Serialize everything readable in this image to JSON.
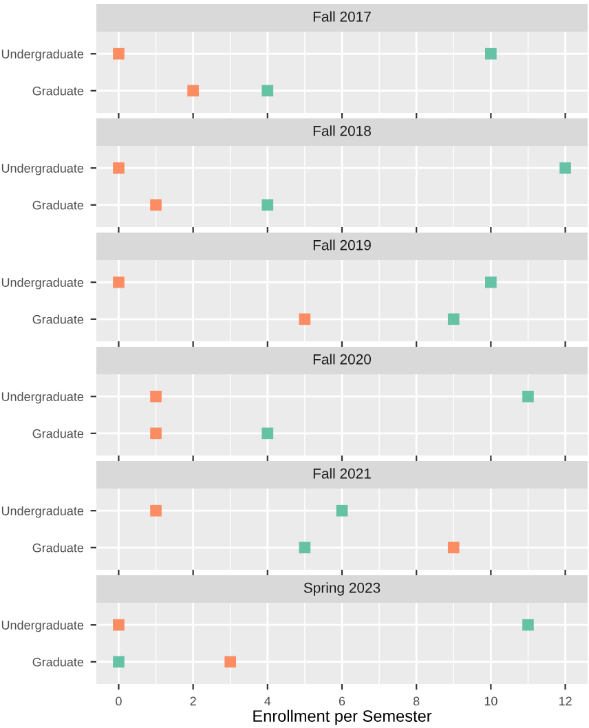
{
  "chart_data": [
    {
      "type": "scatter",
      "title": "Fall 2017",
      "orientation": "horizontal",
      "categories": [
        "Undergraduate",
        "Graduate"
      ],
      "series": [
        {
          "color": "#66c2a5",
          "values": [
            10,
            4
          ]
        },
        {
          "color": "#fc8d62",
          "values": [
            0,
            2
          ]
        }
      ],
      "xlim": [
        -0.6,
        12.6
      ],
      "xticks": [
        0,
        2,
        4,
        6,
        8,
        10,
        12
      ],
      "grid": true,
      "marker": "square",
      "tick_labels": "y"
    },
    {
      "type": "scatter",
      "title": "Fall 2018",
      "orientation": "horizontal",
      "categories": [
        "Undergraduate",
        "Graduate"
      ],
      "series": [
        {
          "color": "#66c2a5",
          "values": [
            12,
            4
          ]
        },
        {
          "color": "#fc8d62",
          "values": [
            0,
            1
          ]
        }
      ],
      "xlim": [
        -0.6,
        12.6
      ],
      "xticks": [
        0,
        2,
        4,
        6,
        8,
        10,
        12
      ],
      "grid": true,
      "marker": "square",
      "tick_labels": "y"
    },
    {
      "type": "scatter",
      "title": "Fall 2019",
      "orientation": "horizontal",
      "categories": [
        "Undergraduate",
        "Graduate"
      ],
      "series": [
        {
          "color": "#66c2a5",
          "values": [
            10,
            9
          ]
        },
        {
          "color": "#fc8d62",
          "values": [
            0,
            5
          ]
        }
      ],
      "xlim": [
        -0.6,
        12.6
      ],
      "xticks": [
        0,
        2,
        4,
        6,
        8,
        10,
        12
      ],
      "grid": true,
      "marker": "square",
      "tick_labels": "y"
    },
    {
      "type": "scatter",
      "title": "Fall 2020",
      "orientation": "horizontal",
      "categories": [
        "Undergraduate",
        "Graduate"
      ],
      "series": [
        {
          "color": "#66c2a5",
          "values": [
            11,
            4
          ]
        },
        {
          "color": "#fc8d62",
          "values": [
            1,
            1
          ]
        }
      ],
      "xlim": [
        -0.6,
        12.6
      ],
      "xticks": [
        0,
        2,
        4,
        6,
        8,
        10,
        12
      ],
      "grid": true,
      "marker": "square",
      "tick_labels": "y"
    },
    {
      "type": "scatter",
      "title": "Fall 2021",
      "orientation": "horizontal",
      "categories": [
        "Undergraduate",
        "Graduate"
      ],
      "series": [
        {
          "color": "#66c2a5",
          "values": [
            6,
            5
          ]
        },
        {
          "color": "#fc8d62",
          "values": [
            1,
            9
          ]
        }
      ],
      "xlim": [
        -0.6,
        12.6
      ],
      "xticks": [
        0,
        2,
        4,
        6,
        8,
        10,
        12
      ],
      "grid": true,
      "marker": "square",
      "tick_labels": "y"
    },
    {
      "type": "scatter",
      "title": "Spring 2023",
      "orientation": "horizontal",
      "categories": [
        "Undergraduate",
        "Graduate"
      ],
      "series": [
        {
          "color": "#fc8d62",
          "values": [
            0,
            3
          ]
        },
        {
          "color": "#66c2a5",
          "values": [
            11,
            0
          ]
        }
      ],
      "xlim": [
        -0.6,
        12.6
      ],
      "xticks": [
        0,
        2,
        4,
        6,
        8,
        10,
        12
      ],
      "grid": true,
      "marker": "square",
      "xlabel": "Enrollment per Semester"
    }
  ]
}
